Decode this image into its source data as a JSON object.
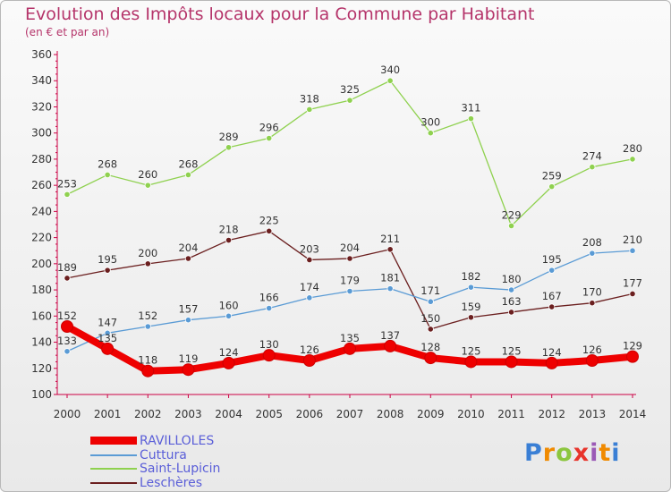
{
  "header": {
    "title": "Evolution des Impôts locaux pour la Commune par Habitant",
    "subtitle": "(en € et par an)"
  },
  "logo": {
    "text": "Proxiti"
  },
  "colors": {
    "title": "#b5346a",
    "axis": "#cc0044",
    "legend_text": "#5a5ed8",
    "ravilloles": "#ee0000",
    "cuttura": "#5a9bd5",
    "saint_lupicin": "#8fd14f",
    "lescheres": "#6b1f1f"
  },
  "chart_data": {
    "type": "line",
    "title": "Evolution des Impôts locaux pour la Commune par Habitant",
    "subtitle": "(en € et par an)",
    "categories": [
      "2000",
      "2001",
      "2002",
      "2003",
      "2004",
      "2005",
      "2006",
      "2007",
      "2008",
      "2009",
      "2010",
      "2011",
      "2012",
      "2013",
      "2014"
    ],
    "ylim": [
      100,
      360
    ],
    "yticks": [
      100,
      120,
      140,
      160,
      180,
      200,
      220,
      240,
      260,
      280,
      300,
      320,
      340,
      360
    ],
    "grid": false,
    "legend_position": "bottom-left",
    "series": [
      {
        "name": "RAVILLOLES",
        "color": "#ee0000",
        "values": [
          152,
          135,
          118,
          119,
          124,
          130,
          126,
          135,
          137,
          128,
          125,
          125,
          124,
          126,
          129
        ]
      },
      {
        "name": "Cuttura",
        "color": "#5a9bd5",
        "values": [
          133,
          147,
          152,
          157,
          160,
          166,
          174,
          179,
          181,
          171,
          182,
          180,
          195,
          208,
          210
        ]
      },
      {
        "name": "Saint-Lupicin",
        "color": "#8fd14f",
        "values": [
          253,
          268,
          260,
          268,
          289,
          296,
          318,
          325,
          340,
          300,
          311,
          229,
          259,
          274,
          280
        ]
      },
      {
        "name": "Leschères",
        "color": "#6b1f1f",
        "values": [
          189,
          195,
          200,
          204,
          218,
          225,
          203,
          204,
          211,
          150,
          159,
          163,
          167,
          170,
          177
        ]
      }
    ]
  }
}
